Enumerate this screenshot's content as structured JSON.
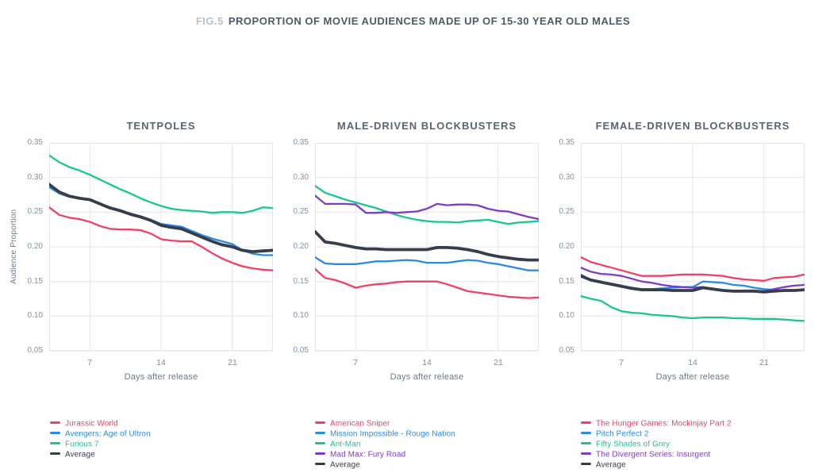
{
  "header": {
    "fig_label": "FIG.5",
    "title": "PROPORTION OF MOVIE AUDIENCES MADE UP OF 15-30 YEAR OLD MALES"
  },
  "colors": {
    "pink": "#ef4167",
    "blue": "#2b8be2",
    "green": "#19c78f",
    "purple": "#7e3dc4",
    "dark": "#363e4d",
    "grid": "#e4e6e9",
    "tick_text": "#8492a2",
    "axis_label_text": "#6d7a8b",
    "panel_title_text": "#596572",
    "fig_label_text": "#b9c0c8",
    "fig_title_text": "#4d5966",
    "background": "#ffffff"
  },
  "chart_data": [
    {
      "type": "line",
      "title": "TENTPOLES",
      "ylabel": "Audience Proportion",
      "xlabel": "Days after release",
      "x": [
        3,
        4,
        5,
        6,
        7,
        8,
        9,
        10,
        11,
        12,
        13,
        14,
        15,
        16,
        17,
        18,
        19,
        20,
        21,
        22,
        23,
        24,
        25
      ],
      "xticks": [
        7,
        14,
        21
      ],
      "yticks": [
        "0.35",
        "0.30",
        "0.25",
        "0.20",
        "0.15",
        "0.10",
        "0.05"
      ],
      "xlim": [
        3,
        25
      ],
      "ylim": [
        0.05,
        0.35
      ],
      "grid": true,
      "legend_position": "bottom-left",
      "series": [
        {
          "name": "Jurassic World",
          "color": "#ef4167",
          "values": [
            0.257,
            0.246,
            0.242,
            0.24,
            0.236,
            0.23,
            0.226,
            0.225,
            0.225,
            0.224,
            0.219,
            0.211,
            0.209,
            0.208,
            0.208,
            0.2,
            0.191,
            0.183,
            0.177,
            0.172,
            0.169,
            0.167,
            0.166
          ]
        },
        {
          "name": "Avengers: Age of Ultron",
          "color": "#2b8be2",
          "values": [
            0.286,
            0.277,
            0.272,
            0.27,
            0.268,
            0.262,
            0.257,
            0.253,
            0.248,
            0.244,
            0.239,
            0.233,
            0.231,
            0.229,
            0.223,
            0.217,
            0.212,
            0.208,
            0.204,
            0.195,
            0.19,
            0.188,
            0.188
          ]
        },
        {
          "name": "Furious 7",
          "color": "#19c78f",
          "values": [
            0.332,
            0.322,
            0.315,
            0.31,
            0.304,
            0.297,
            0.29,
            0.283,
            0.277,
            0.27,
            0.264,
            0.259,
            0.255,
            0.253,
            0.252,
            0.251,
            0.249,
            0.25,
            0.25,
            0.249,
            0.252,
            0.257,
            0.256
          ]
        },
        {
          "name": "Average",
          "color": "#363e4d",
          "average": true,
          "values": [
            0.29,
            0.279,
            0.273,
            0.27,
            0.268,
            0.262,
            0.256,
            0.252,
            0.247,
            0.243,
            0.238,
            0.231,
            0.228,
            0.226,
            0.22,
            0.214,
            0.208,
            0.203,
            0.2,
            0.195,
            0.193,
            0.194,
            0.195
          ]
        }
      ]
    },
    {
      "type": "line",
      "title": "MALE-DRIVEN BLOCKBUSTERS",
      "xlabel": "Days after release",
      "x": [
        3,
        4,
        5,
        6,
        7,
        8,
        9,
        10,
        11,
        12,
        13,
        14,
        15,
        16,
        17,
        18,
        19,
        20,
        21,
        22,
        23,
        24,
        25
      ],
      "xticks": [
        7,
        14,
        21
      ],
      "yticks": [
        "0.35",
        "0.30",
        "0.25",
        "0.20",
        "0.15",
        "0.10",
        "0.05"
      ],
      "xlim": [
        3,
        25
      ],
      "ylim": [
        0.05,
        0.35
      ],
      "grid": true,
      "legend_position": "bottom-left",
      "series": [
        {
          "name": "American Sniper",
          "color": "#ef4167",
          "values": [
            0.168,
            0.155,
            0.152,
            0.147,
            0.141,
            0.144,
            0.146,
            0.147,
            0.149,
            0.15,
            0.15,
            0.15,
            0.15,
            0.146,
            0.141,
            0.136,
            0.134,
            0.132,
            0.13,
            0.128,
            0.127,
            0.126,
            0.127
          ]
        },
        {
          "name": "Mission Impossible - Rouge Nation",
          "color": "#2b8be2",
          "values": [
            0.185,
            0.176,
            0.175,
            0.175,
            0.175,
            0.177,
            0.179,
            0.179,
            0.18,
            0.181,
            0.18,
            0.177,
            0.177,
            0.177,
            0.179,
            0.181,
            0.18,
            0.177,
            0.175,
            0.172,
            0.169,
            0.166,
            0.166
          ]
        },
        {
          "name": "Ant-Man",
          "color": "#19c78f",
          "values": [
            0.288,
            0.278,
            0.273,
            0.268,
            0.264,
            0.26,
            0.256,
            0.251,
            0.246,
            0.242,
            0.239,
            0.237,
            0.236,
            0.236,
            0.235,
            0.237,
            0.238,
            0.239,
            0.236,
            0.233,
            0.235,
            0.236,
            0.237
          ]
        },
        {
          "name": "Mad Max: Fury Road",
          "color": "#7e3dc4",
          "values": [
            0.274,
            0.262,
            0.262,
            0.262,
            0.261,
            0.249,
            0.249,
            0.25,
            0.249,
            0.25,
            0.251,
            0.255,
            0.262,
            0.26,
            0.261,
            0.261,
            0.26,
            0.255,
            0.252,
            0.251,
            0.247,
            0.243,
            0.24
          ]
        },
        {
          "name": "Average",
          "color": "#363e4d",
          "average": true,
          "values": [
            0.222,
            0.207,
            0.205,
            0.202,
            0.199,
            0.197,
            0.197,
            0.196,
            0.196,
            0.196,
            0.196,
            0.196,
            0.199,
            0.199,
            0.198,
            0.196,
            0.193,
            0.189,
            0.186,
            0.184,
            0.182,
            0.181,
            0.181
          ]
        }
      ]
    },
    {
      "type": "line",
      "title": "FEMALE-DRIVEN BLOCKBUSTERS",
      "xlabel": "Days after release",
      "x": [
        3,
        4,
        5,
        6,
        7,
        8,
        9,
        10,
        11,
        12,
        13,
        14,
        15,
        16,
        17,
        18,
        19,
        20,
        21,
        22,
        23,
        24,
        25
      ],
      "xticks": [
        7,
        14,
        21
      ],
      "yticks": [
        "0.35",
        "0.30",
        "0.25",
        "0.20",
        "0.15",
        "0.10",
        "0.05"
      ],
      "xlim": [
        3,
        25
      ],
      "ylim": [
        0.05,
        0.35
      ],
      "grid": true,
      "legend_position": "bottom-left",
      "series": [
        {
          "name": "The Hunger Games: Mockinjay Part 2",
          "color": "#ef4167",
          "values": [
            0.185,
            0.178,
            0.174,
            0.17,
            0.166,
            0.162,
            0.158,
            0.158,
            0.158,
            0.159,
            0.16,
            0.16,
            0.16,
            0.159,
            0.158,
            0.155,
            0.153,
            0.152,
            0.151,
            0.155,
            0.156,
            0.157,
            0.16
          ]
        },
        {
          "name": "Pitch Perfect 2",
          "color": "#2b8be2",
          "values": [
            0.16,
            0.152,
            0.149,
            0.147,
            0.144,
            0.141,
            0.139,
            0.139,
            0.14,
            0.141,
            0.142,
            0.142,
            0.15,
            0.149,
            0.148,
            0.145,
            0.144,
            0.141,
            0.139,
            0.138,
            0.137,
            0.137,
            0.138
          ]
        },
        {
          "name": "Fifty Shades of Grey",
          "color": "#19c78f",
          "values": [
            0.129,
            0.125,
            0.122,
            0.113,
            0.107,
            0.105,
            0.104,
            0.102,
            0.101,
            0.1,
            0.098,
            0.097,
            0.098,
            0.098,
            0.098,
            0.097,
            0.097,
            0.096,
            0.096,
            0.096,
            0.095,
            0.094,
            0.093
          ]
        },
        {
          "name": "The Divergent Series: Insurgent",
          "color": "#7e3dc4",
          "values": [
            0.17,
            0.164,
            0.161,
            0.16,
            0.158,
            0.154,
            0.15,
            0.148,
            0.145,
            0.143,
            0.142,
            0.141,
            0.142,
            0.139,
            0.137,
            0.136,
            0.137,
            0.137,
            0.136,
            0.139,
            0.142,
            0.144,
            0.145
          ]
        },
        {
          "name": "Average",
          "color": "#363e4d",
          "average": true,
          "values": [
            0.158,
            0.152,
            0.149,
            0.146,
            0.143,
            0.14,
            0.138,
            0.138,
            0.138,
            0.137,
            0.137,
            0.137,
            0.141,
            0.139,
            0.137,
            0.136,
            0.136,
            0.136,
            0.135,
            0.136,
            0.137,
            0.137,
            0.138
          ]
        }
      ]
    }
  ]
}
